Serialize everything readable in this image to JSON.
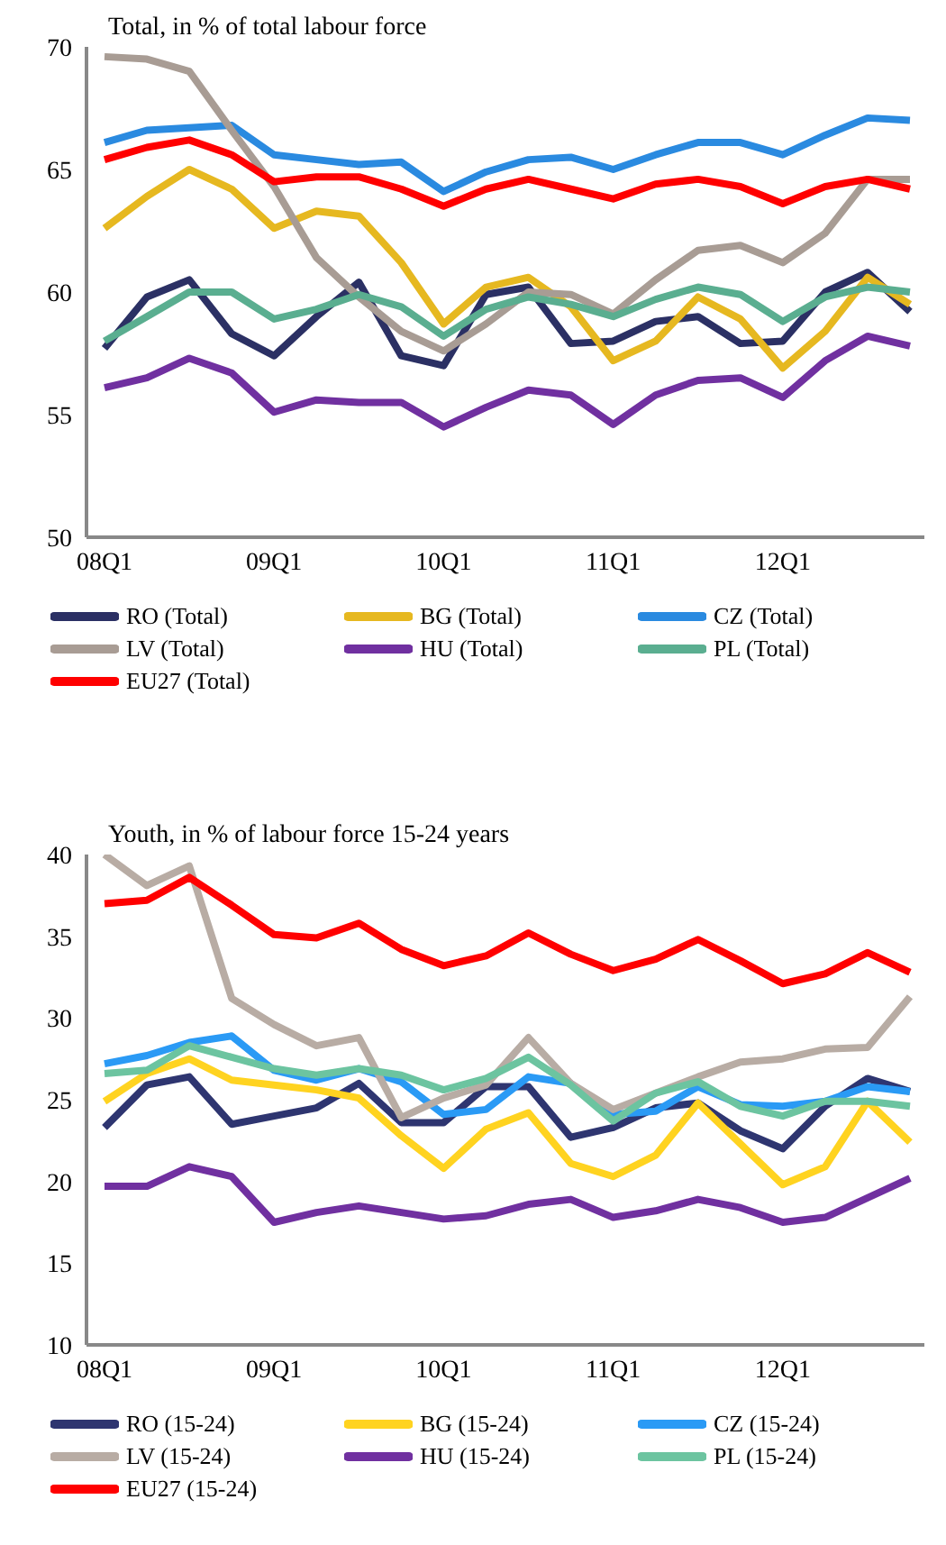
{
  "chart_data": [
    {
      "type": "line",
      "title": "Total, in % of total labour force",
      "categories": [
        "08Q1",
        null,
        null,
        null,
        "09Q1",
        null,
        null,
        null,
        "10Q1",
        null,
        null,
        null,
        "11Q1",
        null,
        null,
        null,
        "12Q1",
        null,
        null,
        null
      ],
      "ylim": [
        50,
        70
      ],
      "yticks": [
        50,
        55,
        60,
        65,
        70
      ],
      "grid": false,
      "legend": "bottom",
      "marker": "none",
      "line_style": "solid",
      "series": [
        {
          "name": "RO  (Total)",
          "color": "#2b3064",
          "values": [
            57.7,
            59.8,
            60.5,
            58.3,
            57.4,
            59.0,
            60.4,
            57.4,
            57.0,
            59.9,
            60.2,
            57.9,
            58.0,
            58.8,
            59.0,
            57.9,
            58.0,
            60.0,
            60.8,
            59.2
          ]
        },
        {
          "name": "BG  (Total)",
          "color": "#e6b820",
          "values": [
            62.6,
            63.9,
            65.0,
            64.2,
            62.6,
            63.3,
            63.1,
            61.2,
            58.7,
            60.2,
            60.6,
            59.4,
            57.2,
            58.0,
            59.8,
            58.9,
            56.9,
            58.4,
            60.6,
            59.5
          ]
        },
        {
          "name": "CZ  (Total)",
          "color": "#2a8ae0",
          "values": [
            66.1,
            66.6,
            66.7,
            66.8,
            65.6,
            65.4,
            65.2,
            65.3,
            64.1,
            64.9,
            65.4,
            65.5,
            65.0,
            65.6,
            66.1,
            66.1,
            65.6,
            66.4,
            67.1,
            67.0
          ]
        },
        {
          "name": "LV  (Total)",
          "color": "#a89c94",
          "values": [
            69.6,
            69.5,
            69.0,
            66.6,
            64.3,
            61.4,
            59.8,
            58.4,
            57.6,
            58.7,
            60.0,
            59.9,
            59.1,
            60.5,
            61.7,
            61.9,
            61.2,
            62.4,
            64.6,
            64.6
          ]
        },
        {
          "name": "HU  (Total)",
          "color": "#7030a0",
          "values": [
            56.1,
            56.5,
            57.3,
            56.7,
            55.1,
            55.6,
            55.5,
            55.5,
            54.5,
            55.3,
            56.0,
            55.8,
            54.6,
            55.8,
            56.4,
            56.5,
            55.7,
            57.2,
            58.2,
            57.8
          ]
        },
        {
          "name": "PL  (Total)",
          "color": "#5aae90",
          "values": [
            58.0,
            59.0,
            60.0,
            60.0,
            58.9,
            59.3,
            59.9,
            59.4,
            58.2,
            59.3,
            59.8,
            59.5,
            59.0,
            59.7,
            60.2,
            59.9,
            58.8,
            59.8,
            60.2,
            60.0
          ]
        },
        {
          "name": "EU27  (Total)",
          "color": "#ff0000",
          "values": [
            65.4,
            65.9,
            66.2,
            65.6,
            64.5,
            64.7,
            64.7,
            64.2,
            63.5,
            64.2,
            64.6,
            64.2,
            63.8,
            64.4,
            64.6,
            64.3,
            63.6,
            64.3,
            64.6,
            64.2
          ]
        }
      ]
    },
    {
      "type": "line",
      "title": "Youth, in % of labour force 15-24 years",
      "categories": [
        "08Q1",
        null,
        null,
        null,
        "09Q1",
        null,
        null,
        null,
        "10Q1",
        null,
        null,
        null,
        "11Q1",
        null,
        null,
        null,
        "12Q1",
        null,
        null,
        null
      ],
      "ylim": [
        10,
        40
      ],
      "yticks": [
        10,
        15,
        20,
        25,
        30,
        35,
        40
      ],
      "grid": false,
      "legend": "bottom",
      "marker": "none",
      "line_style": "solid",
      "series": [
        {
          "name": "RO  (15-24)",
          "color": "#2e3570",
          "values": [
            23.3,
            25.9,
            26.4,
            23.5,
            24.0,
            24.5,
            26.0,
            23.6,
            23.6,
            25.8,
            25.8,
            22.7,
            23.3,
            24.5,
            24.8,
            23.1,
            22.0,
            24.6,
            26.3,
            25.5
          ]
        },
        {
          "name": "BG  (15-24)",
          "color": "#ffd320",
          "values": [
            24.9,
            26.6,
            27.5,
            26.2,
            25.9,
            25.6,
            25.1,
            22.8,
            20.8,
            23.2,
            24.2,
            21.1,
            20.3,
            21.6,
            24.8,
            22.3,
            19.8,
            20.9,
            24.9,
            22.4
          ]
        },
        {
          "name": "CZ  (15-24)",
          "color": "#2a9af5",
          "values": [
            27.2,
            27.7,
            28.5,
            28.9,
            26.8,
            26.2,
            26.9,
            26.1,
            24.1,
            24.4,
            26.4,
            26.0,
            24.1,
            24.3,
            25.8,
            24.7,
            24.6,
            24.9,
            25.8,
            25.5
          ]
        },
        {
          "name": "LV  (15-24)",
          "color": "#b8aca4",
          "values": [
            40.0,
            38.1,
            39.3,
            31.2,
            29.6,
            28.3,
            28.8,
            23.9,
            25.1,
            25.9,
            28.8,
            26.0,
            24.4,
            25.4,
            26.4,
            27.3,
            27.5,
            28.1,
            28.2,
            31.3
          ]
        },
        {
          "name": "HU  (15-24)",
          "color": "#7030a0",
          "values": [
            19.7,
            19.7,
            20.9,
            20.3,
            17.5,
            18.1,
            18.5,
            18.1,
            17.7,
            17.9,
            18.6,
            18.9,
            17.8,
            18.2,
            18.9,
            18.4,
            17.5,
            17.8,
            19.0,
            20.2
          ]
        },
        {
          "name": "PL  (15-24)",
          "color": "#6cc4a0",
          "values": [
            26.6,
            26.8,
            28.3,
            27.6,
            26.9,
            26.5,
            26.9,
            26.5,
            25.6,
            26.3,
            27.6,
            25.9,
            23.7,
            25.4,
            26.1,
            24.6,
            24.0,
            24.9,
            24.9,
            24.6
          ]
        },
        {
          "name": "EU27  (15-24)",
          "color": "#ff0000",
          "values": [
            37.0,
            37.2,
            38.6,
            36.9,
            35.1,
            34.9,
            35.8,
            34.2,
            33.2,
            33.8,
            35.2,
            33.9,
            32.9,
            33.6,
            34.8,
            33.5,
            32.1,
            32.7,
            34.0,
            32.8
          ]
        }
      ]
    }
  ]
}
